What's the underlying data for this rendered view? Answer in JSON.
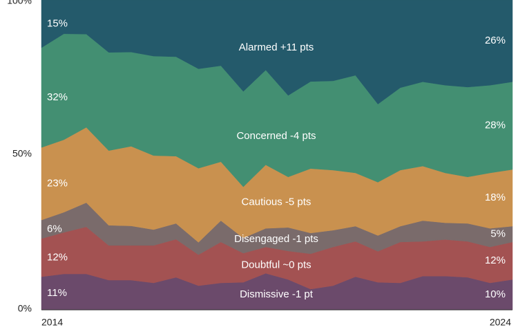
{
  "chart_data": {
    "type": "stacked_area",
    "categories": [
      "2014",
      null,
      null,
      null,
      null,
      null,
      null,
      null,
      null,
      null,
      null,
      null,
      null,
      null,
      null,
      null,
      null,
      null,
      null,
      null,
      null,
      "2024"
    ],
    "ylim": [
      0,
      100
    ],
    "yticks": [
      {
        "value": 0,
        "label": "0%"
      },
      {
        "value": 50,
        "label": "50%"
      },
      {
        "value": 100,
        "label": "100%"
      }
    ],
    "series": [
      {
        "name": "Dismissive -1 pt",
        "color": "#6b4a6b",
        "values": [
          10.7,
          11.6,
          11.6,
          9.6,
          9.6,
          8.7,
          10.5,
          7.8,
          8.7,
          8.9,
          11.8,
          9.8,
          6.7,
          7.8,
          10.7,
          8.9,
          8.7,
          10.9,
          10.9,
          10.5,
          8.7,
          9.8
        ],
        "value_labels": [
          "11%",
          null,
          null,
          null,
          null,
          null,
          null,
          null,
          null,
          null,
          null,
          null,
          null,
          null,
          null,
          null,
          null,
          null,
          null,
          null,
          null,
          "10%"
        ]
      },
      {
        "name": "Doubtful ~0 pts",
        "color": "#a35252",
        "values": [
          12.3,
          13.4,
          15.2,
          11.2,
          11.2,
          12.1,
          12.3,
          10.0,
          13.2,
          9.4,
          8.5,
          9.2,
          11.4,
          12.5,
          11.4,
          10.0,
          13.2,
          11.2,
          11.8,
          11.6,
          11.6,
          12.1
        ],
        "value_labels": [
          "12%",
          null,
          null,
          null,
          null,
          null,
          null,
          null,
          null,
          null,
          null,
          null,
          null,
          null,
          null,
          null,
          null,
          null,
          null,
          null,
          null,
          "12%"
        ]
      },
      {
        "name": "Disengaged -1 pts",
        "color": "#7a6b6b",
        "values": [
          6.0,
          6.5,
          7.8,
          6.5,
          6.3,
          5.1,
          5.1,
          4.0,
          6.9,
          4.9,
          6.0,
          7.6,
          6.7,
          5.4,
          4.9,
          5.1,
          5.1,
          6.7,
          5.4,
          5.8,
          6.0,
          5.1
        ],
        "value_labels": [
          "6%",
          null,
          null,
          null,
          null,
          null,
          null,
          null,
          null,
          null,
          null,
          null,
          null,
          null,
          null,
          null,
          null,
          null,
          null,
          null,
          null,
          "5%"
        ]
      },
      {
        "name": "Cautious -5 pts",
        "color": "#c9914f",
        "values": [
          23.4,
          23.4,
          24.3,
          24.1,
          25.7,
          23.9,
          21.7,
          23.9,
          19.0,
          16.5,
          20.5,
          16.3,
          20.8,
          19.4,
          17.2,
          17.2,
          18.1,
          17.6,
          16.1,
          15.0,
          17.9,
          18.3
        ],
        "value_labels": [
          "23%",
          null,
          null,
          null,
          null,
          null,
          null,
          null,
          null,
          null,
          null,
          null,
          null,
          null,
          null,
          null,
          null,
          null,
          null,
          null,
          null,
          "18%"
        ]
      },
      {
        "name": "Concerned -4 pts",
        "color": "#438f72",
        "values": [
          32.2,
          34.2,
          30.1,
          31.7,
          30.4,
          32.1,
          32.1,
          32.1,
          31.0,
          30.8,
          30.6,
          26.3,
          28.1,
          28.8,
          31.5,
          25.2,
          26.6,
          27.2,
          28.3,
          29.0,
          28.3,
          28.3
        ],
        "value_labels": [
          "32%",
          null,
          null,
          null,
          null,
          null,
          null,
          null,
          null,
          null,
          null,
          null,
          null,
          null,
          null,
          null,
          null,
          null,
          null,
          null,
          null,
          "28%"
        ]
      },
      {
        "name": "Alarmed +11 pts",
        "color": "#245a6b",
        "values": [
          15.4,
          10.9,
          11.0,
          16.9,
          16.8,
          18.1,
          18.3,
          22.2,
          21.2,
          29.5,
          22.6,
          30.8,
          26.3,
          26.1,
          24.3,
          33.6,
          28.3,
          26.4,
          27.5,
          28.1,
          27.5,
          26.4
        ],
        "value_labels": [
          "15%",
          null,
          null,
          null,
          null,
          null,
          null,
          null,
          null,
          null,
          null,
          null,
          null,
          null,
          null,
          null,
          null,
          null,
          null,
          null,
          null,
          "26%"
        ]
      }
    ]
  }
}
